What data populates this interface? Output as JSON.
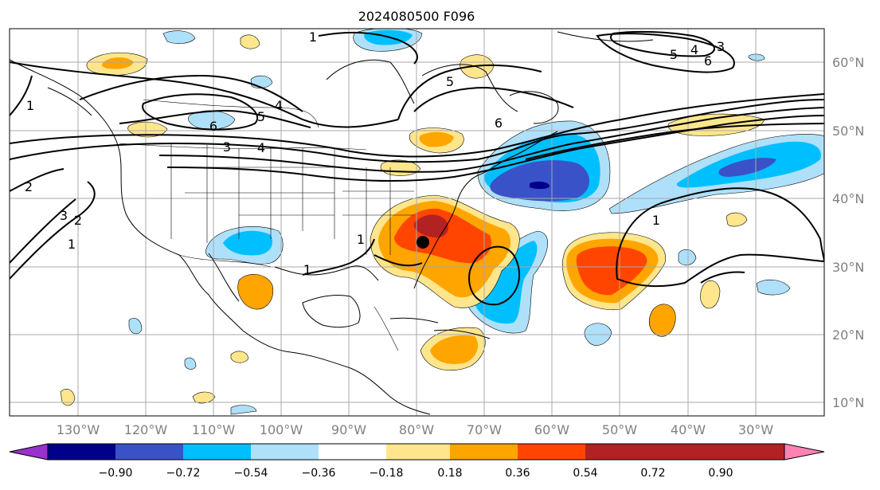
{
  "title": "2024080500 F096",
  "map": {
    "lon_labels": [
      "130°W",
      "120°W",
      "110°W",
      "100°W",
      "90°W",
      "80°W",
      "70°W",
      "60°W",
      "50°W",
      "40°W",
      "30°W"
    ],
    "lat_labels": [
      "60°N",
      "50°N",
      "40°N",
      "30°N",
      "20°N",
      "10°N"
    ],
    "contour_labels": [
      "1",
      "1",
      "1",
      "1",
      "1",
      "1",
      "2",
      "2",
      "3",
      "3",
      "3",
      "4",
      "4",
      "4",
      "5",
      "5",
      "5",
      "6",
      "6",
      "6"
    ],
    "marker": "storm-position-dot"
  },
  "colorbar": {
    "ticks": [
      "−0.90",
      "−0.72",
      "−0.54",
      "−0.36",
      "−0.18",
      "0.18",
      "0.36",
      "0.54",
      "0.72",
      "0.90"
    ],
    "colors": [
      "#9932cc",
      "#00008b",
      "#3a52c8",
      "#00bfff",
      "#afe0fa",
      "#ffffff",
      "#ffe68c",
      "#ffa500",
      "#ff4500",
      "#b22222",
      "#ff82b4"
    ]
  }
}
